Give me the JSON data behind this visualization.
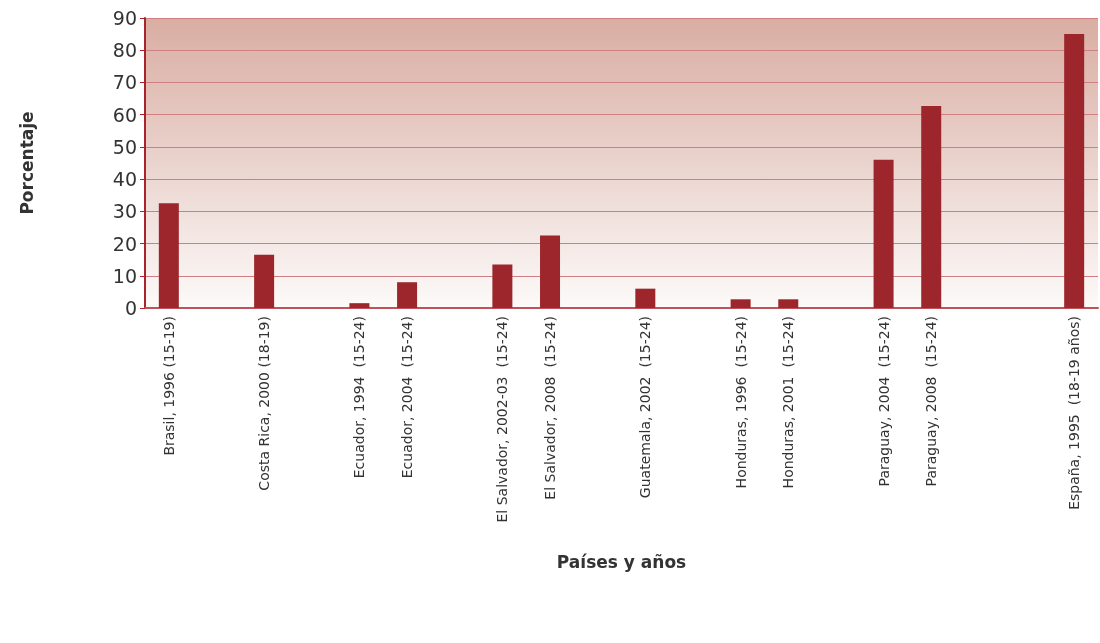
{
  "chart_data": {
    "type": "bar",
    "xlabel": "Países y años",
    "ylabel": "Porcentaje",
    "categories": [
      "Brasil, 1996 (15-19)",
      null,
      "Costa Rica, 2000 (18-19)",
      null,
      "Ecuador, 1994  (15-24)",
      "Ecuador, 2004  (15-24)",
      null,
      "El Salvador, 2002-03  (15-24)",
      "El Salvador, 2008  (15-24)",
      null,
      "Guatemala, 2002  (15-24)",
      null,
      "Honduras, 1996  (15-24)",
      "Honduras, 2001  (15-24)",
      null,
      "Paraguay, 2004  (15-24)",
      "Paraguay, 2008  (15-24)",
      null,
      null,
      "España, 1995  (18-19 años)"
    ],
    "values": [
      32.5,
      null,
      16.5,
      null,
      1.5,
      8,
      null,
      13.5,
      22.5,
      null,
      6,
      null,
      2.7,
      2.7,
      null,
      46,
      62.7,
      null,
      null,
      85
    ],
    "color": "#9c262b",
    "ylim": [
      0,
      90
    ],
    "yticks": [
      0,
      10,
      20,
      30,
      40,
      50,
      60,
      70,
      80,
      90
    ],
    "grid": "y"
  }
}
